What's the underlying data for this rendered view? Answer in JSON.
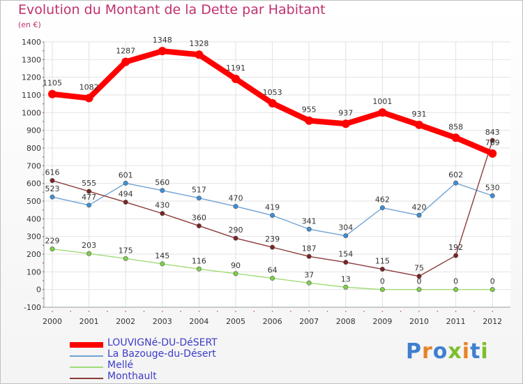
{
  "header": {
    "title": "Evolution du Montant de la Dette par Habitant",
    "subtitle": "(en €)"
  },
  "logo": {
    "text": "Proxiti",
    "letter_colors": [
      "#3f7fd0",
      "#e8832a",
      "#3f7fd0",
      "#7cbf2a",
      "#e8832a",
      "#3f7fd0",
      "#7cbf2a"
    ]
  },
  "chart_data": {
    "type": "line",
    "title": "Evolution du Montant de la Dette par Habitant",
    "subtitle": "(en €)",
    "x": [
      "2000",
      "2001",
      "2002",
      "2003",
      "2004",
      "2005",
      "2006",
      "2007",
      "2008",
      "2009",
      "2010",
      "2011",
      "2012"
    ],
    "ylim": [
      -100,
      1400
    ],
    "yticks": [
      -100,
      0,
      100,
      200,
      300,
      400,
      500,
      600,
      700,
      800,
      900,
      1000,
      1100,
      1200,
      1300,
      1400
    ],
    "grid": true,
    "legend_position": "bottom-left",
    "series": [
      {
        "name": "LOUVIGNé-DU-DéSERT",
        "color": "#ff0000",
        "marker_color": "#ff0000",
        "values": [
          1105,
          1082,
          1287,
          1348,
          1328,
          1191,
          1053,
          955,
          937,
          1001,
          931,
          858,
          769
        ],
        "labels": [
          "1105",
          "1082",
          "1287",
          "1348",
          "1328",
          "1191",
          "1053",
          "955",
          "937",
          "1001",
          "931",
          "858",
          "769"
        ]
      },
      {
        "name": "La Bazouge-du-Désert",
        "color": "#6fa2d5",
        "marker_color": "#3d8fd8",
        "values": [
          523,
          477,
          601,
          560,
          517,
          470,
          419,
          341,
          304,
          462,
          420,
          602,
          530
        ],
        "labels": [
          "523",
          "477",
          "601",
          "560",
          "517",
          "470",
          "419",
          "341",
          "304",
          "462",
          "420",
          "602",
          "530"
        ]
      },
      {
        "name": "Mellé",
        "color": "#a0dc78",
        "marker_color": "#7ed04a",
        "values": [
          229,
          203,
          175,
          145,
          116,
          90,
          64,
          37,
          13,
          0,
          0,
          0,
          0
        ],
        "labels": [
          "229",
          "203",
          "175",
          "145",
          "116",
          "90",
          "64",
          "37",
          "13",
          "0",
          "0",
          "0",
          "0"
        ]
      },
      {
        "name": "Monthault",
        "color": "#8b3a3a",
        "marker_color": "#7a2424",
        "values": [
          616,
          555,
          494,
          430,
          360,
          290,
          239,
          187,
          154,
          115,
          75,
          192,
          843
        ],
        "labels": [
          "616",
          "555",
          "494",
          "430",
          "360",
          "290",
          "239",
          "187",
          "154",
          "115",
          "75",
          "192",
          "843"
        ]
      }
    ]
  }
}
